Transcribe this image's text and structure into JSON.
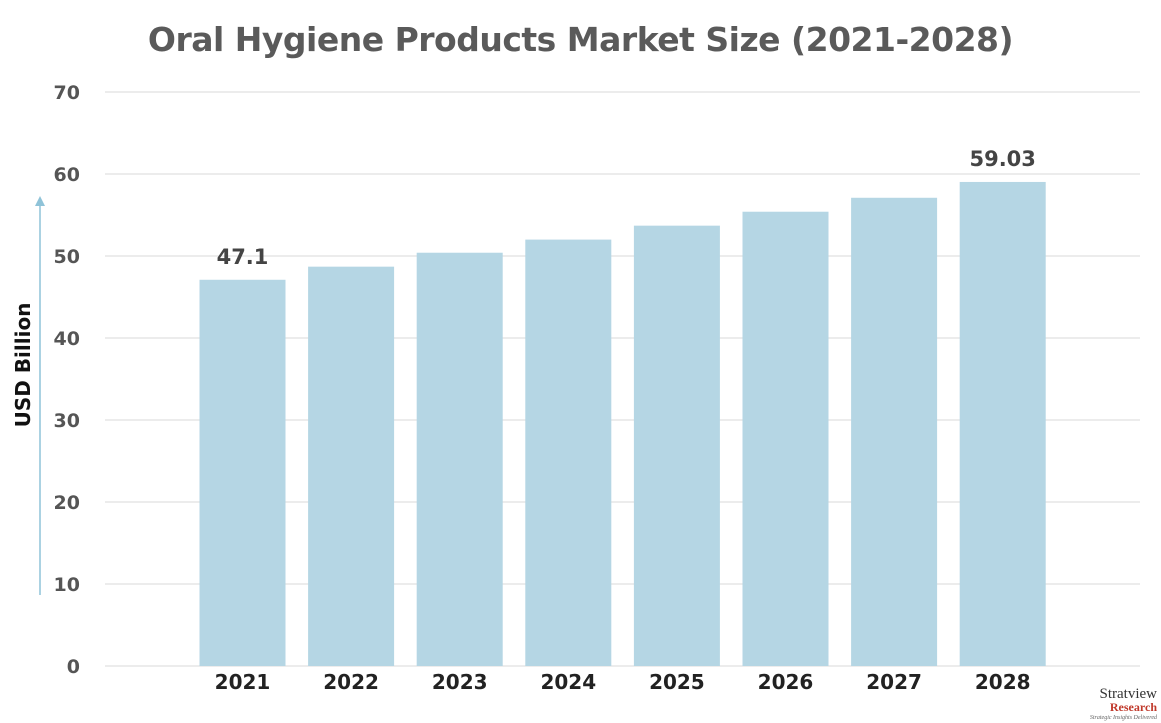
{
  "chart_data": {
    "type": "bar",
    "title": "Oral Hygiene Products Market Size (2021-2028)",
    "xlabel": "",
    "ylabel": "USD Billion",
    "ylim": [
      0,
      70
    ],
    "yticks": [
      0,
      10,
      20,
      30,
      40,
      50,
      60,
      70
    ],
    "grid": true,
    "categories": [
      "2021",
      "2022",
      "2023",
      "2024",
      "2025",
      "2026",
      "2027",
      "2028"
    ],
    "values": [
      47.1,
      48.7,
      50.4,
      52.0,
      53.7,
      55.4,
      57.1,
      59.03
    ],
    "data_labels": {
      "0": "47.1",
      "7": "59.03"
    },
    "bar_color": "#b5d6e4"
  },
  "logo": {
    "name": "Stratview",
    "sub": "Research",
    "tagline": "Strategic Insights Delivered"
  }
}
